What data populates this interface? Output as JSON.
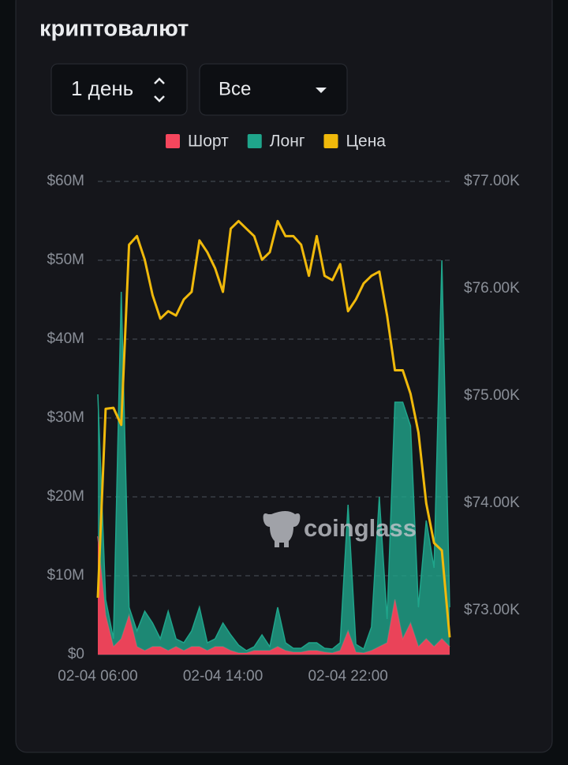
{
  "title": "криптовалют",
  "controls": {
    "period": "1 день",
    "filter": "Все"
  },
  "watermark": "coinglass",
  "chart_data": {
    "type": "area",
    "categories": [
      "02-04 06:00",
      null,
      null,
      null,
      null,
      null,
      null,
      null,
      null,
      null,
      null,
      null,
      null,
      null,
      null,
      null,
      "02-04 14:00",
      null,
      null,
      null,
      null,
      null,
      null,
      null,
      null,
      null,
      null,
      null,
      null,
      null,
      null,
      null,
      "02-04 22:00",
      null,
      null,
      null,
      null,
      null,
      null,
      null,
      null,
      null,
      null,
      null,
      null,
      null
    ],
    "series": [
      {
        "name": "Шорт",
        "type": "area",
        "color": "#f6465d",
        "values": [
          15,
          5,
          1,
          2,
          5,
          1,
          0.5,
          1,
          1,
          0.5,
          1,
          0.5,
          1,
          1,
          0.5,
          1,
          1,
          0.5,
          0.2,
          0.2,
          0.5,
          0.5,
          0.5,
          1,
          0.5,
          0.3,
          0.3,
          0.5,
          0.5,
          0.3,
          0.2,
          0.5,
          3,
          0.3,
          0.2,
          0.5,
          1,
          1.5,
          7,
          2,
          4,
          1,
          2,
          1,
          2,
          1
        ]
      },
      {
        "name": "Лонг",
        "type": "area",
        "color": "#1fa58b",
        "values": [
          18,
          2,
          1,
          44,
          1,
          2,
          5,
          3,
          1,
          5,
          1,
          1,
          2,
          5,
          1,
          1,
          3,
          2,
          1,
          0.3,
          0.5,
          2,
          0.5,
          5,
          1,
          0.5,
          0.5,
          1,
          1,
          0.5,
          0.5,
          1,
          16,
          1,
          0.5,
          3,
          19,
          3,
          25,
          30,
          25,
          5,
          15,
          10,
          48,
          5
        ]
      },
      {
        "name": "Цена",
        "type": "line",
        "axis": "y2",
        "color": "#f0b90b",
        "values": [
          73120,
          74880,
          74890,
          74730,
          76410,
          76490,
          76270,
          75940,
          75720,
          75790,
          75750,
          75900,
          75970,
          76450,
          76340,
          76190,
          75970,
          76560,
          76630,
          76560,
          76490,
          76270,
          76340,
          76630,
          76490,
          76490,
          76410,
          76120,
          76490,
          76120,
          76080,
          76230,
          75790,
          75900,
          76050,
          76120,
          76160,
          75750,
          75240,
          75240,
          75020,
          74660,
          74000,
          73630,
          73560,
          72750
        ]
      }
    ],
    "ylim": [
      0,
      60
    ],
    "yticks": [
      {
        "value": 0,
        "label": "$0"
      },
      {
        "value": 10,
        "label": "$10M"
      },
      {
        "value": 20,
        "label": "$20M"
      },
      {
        "value": 30,
        "label": "$30M"
      },
      {
        "value": 40,
        "label": "$40M"
      },
      {
        "value": 50,
        "label": "$50M"
      },
      {
        "value": 60,
        "label": "$60M"
      }
    ],
    "y2lim": [
      72590,
      77000
    ],
    "y2ticks": [
      {
        "value": 73000,
        "label": "$73.00K"
      },
      {
        "value": 74000,
        "label": "$74.00K"
      },
      {
        "value": 75000,
        "label": "$75.00K"
      },
      {
        "value": 76000,
        "label": "$76.00K"
      },
      {
        "value": 77000,
        "label": "$77.00K"
      }
    ],
    "grid": true,
    "legend": "top"
  }
}
